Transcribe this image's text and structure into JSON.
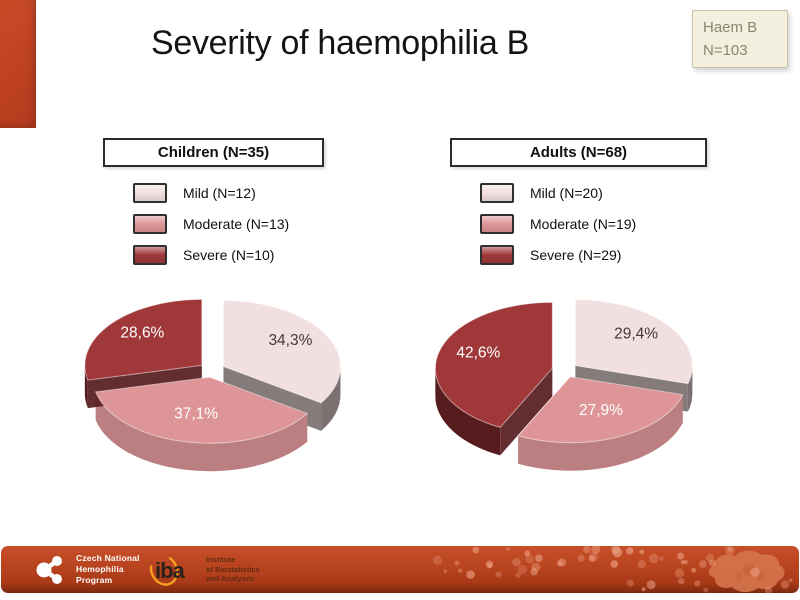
{
  "slide": {
    "title": "Severity of haemophilia B",
    "badge": {
      "line1": "Haem B",
      "line2": "N=103"
    }
  },
  "palette": {
    "accent_bar": "#bd4022",
    "footer_bar": "#b8431f",
    "badge_bg": "#f4f0df",
    "badge_border": "#c9c2a4",
    "badge_text": "#8b8671",
    "title_text": "#141414",
    "mild": "#f2dfdf",
    "moderate": "#dd9597",
    "severe": "#a03839"
  },
  "chart_data": [
    {
      "type": "pie",
      "style": "3d-exploded",
      "title": "Children (N=35)",
      "n": 35,
      "labels": [
        "Mild (N=12)",
        "Moderate (N=13)",
        "Severe (N=10)"
      ],
      "values": [
        12,
        13,
        10
      ],
      "percentages": [
        34.3,
        37.1,
        28.6
      ],
      "percent_labels": [
        "34,3%",
        "37,1%",
        "28,6%"
      ],
      "colors": [
        "#f2dfdf",
        "#dd9597",
        "#a03839"
      ],
      "side_colors": [
        "#7c7070",
        "#bb7f81",
        "#571c1e"
      ],
      "label_colors": [
        "#403b3b",
        "#ffffff",
        "#ffffff"
      ],
      "start_angle_deg": 0,
      "direction": "clockwise",
      "legend_position": "top"
    },
    {
      "type": "pie",
      "style": "3d-exploded",
      "title": "Adults (N=68)",
      "n": 68,
      "labels": [
        "Mild (N=20)",
        "Moderate (N=19)",
        "Severe (N=29)"
      ],
      "values": [
        20,
        19,
        29
      ],
      "percentages": [
        29.4,
        27.9,
        42.6
      ],
      "percent_labels": [
        "29,4%",
        "27,9%",
        "42,6%"
      ],
      "colors": [
        "#f2dfdf",
        "#dd9597",
        "#a03839"
      ],
      "side_colors": [
        "#7c7070",
        "#bb7f81",
        "#571c1e"
      ],
      "label_colors": [
        "#403b3b",
        "#ffffff",
        "#ffffff"
      ],
      "start_angle_deg": 0,
      "direction": "clockwise",
      "legend_position": "top"
    }
  ],
  "footer": {
    "cnhp_logo": {
      "line1": "Czech National",
      "line2": "Hemophilia",
      "line3": "Program"
    },
    "iba_logo": {
      "wordmark": "iba",
      "line1": "Institute",
      "line2": "of Biostatistics",
      "line3": "and Analyses"
    }
  }
}
